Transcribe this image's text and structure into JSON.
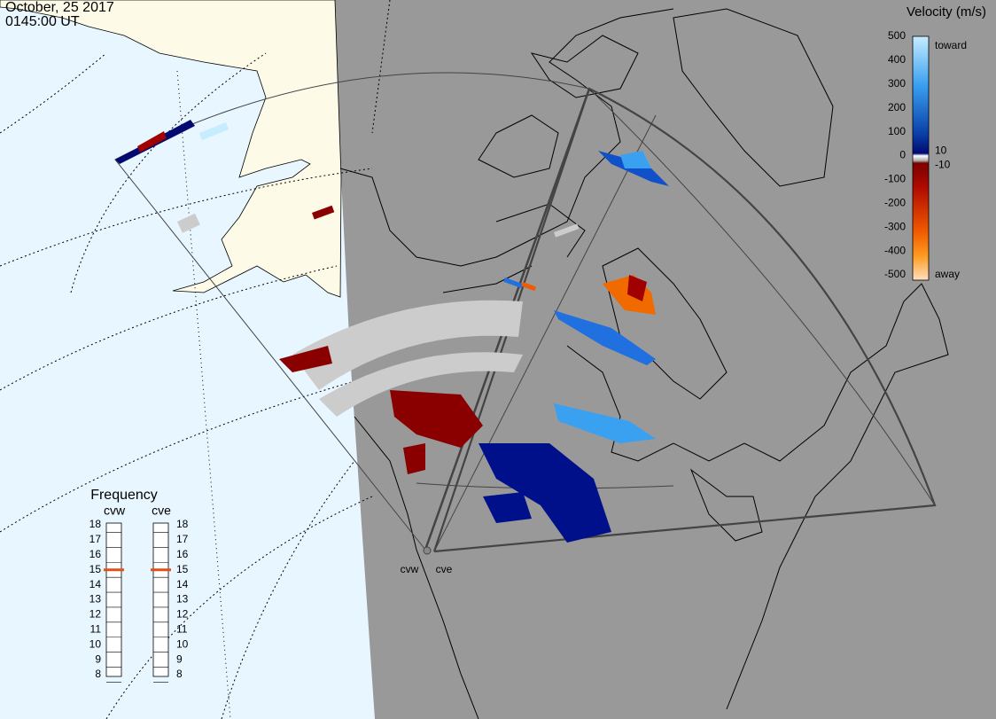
{
  "header": {
    "date": "October, 25 2017",
    "time": "0145:00 UT"
  },
  "velocity_scale": {
    "title": "Velocity (m/s)",
    "ticks": [
      500,
      400,
      300,
      200,
      100,
      0,
      -100,
      -200,
      -300,
      -400,
      -500
    ],
    "inner_ticks": [
      10,
      -10
    ],
    "toward": "toward",
    "away": "away"
  },
  "frequency": {
    "title": "Frequency",
    "radars": [
      {
        "name": "cvw",
        "value": 15
      },
      {
        "name": "cve",
        "value": 15
      }
    ],
    "ticks": [
      18,
      17,
      16,
      15,
      14,
      13,
      12,
      11,
      10,
      9,
      8
    ]
  },
  "stations": [
    "cvw",
    "cve"
  ]
}
